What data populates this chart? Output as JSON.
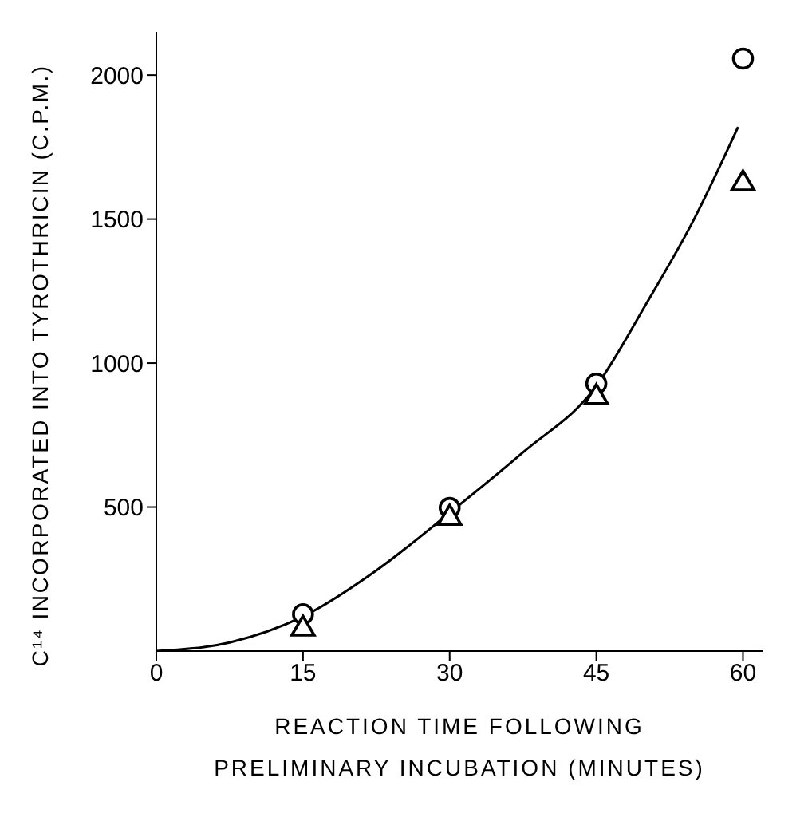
{
  "chart_data": {
    "type": "scatter",
    "xlabel": "REACTION TIME FOLLOWING\nPRELIMINARY INCUBATION (MINUTES)",
    "ylabel": "C¹⁴ INCORPORATED INTO TYROTHRICIN (C.P.M.)",
    "xlim": [
      0,
      62
    ],
    "xticks": [
      0,
      15,
      30,
      45,
      60
    ],
    "ylim": [
      0,
      2150
    ],
    "yticks": [
      500,
      1000,
      1500,
      2000
    ],
    "grid": false,
    "legend": false,
    "series": [
      {
        "marker": "circle",
        "color": "#000000",
        "x": [
          15,
          30,
          45,
          60
        ],
        "values": [
          128,
          497,
          929,
          2057
        ]
      },
      {
        "marker": "triangle",
        "color": "#000000",
        "x": [
          15,
          30,
          45,
          60
        ],
        "values": [
          83,
          468,
          887,
          1629
        ]
      },
      {
        "type": "line",
        "marker": "none",
        "color": "#000000",
        "x": [
          0,
          7.5,
          15,
          22.5,
          30,
          37.5,
          45,
          50,
          55,
          59.5
        ],
        "values": [
          0,
          30,
          120,
          280,
          480,
          690,
          920,
          1200,
          1500,
          1820
        ]
      }
    ]
  }
}
